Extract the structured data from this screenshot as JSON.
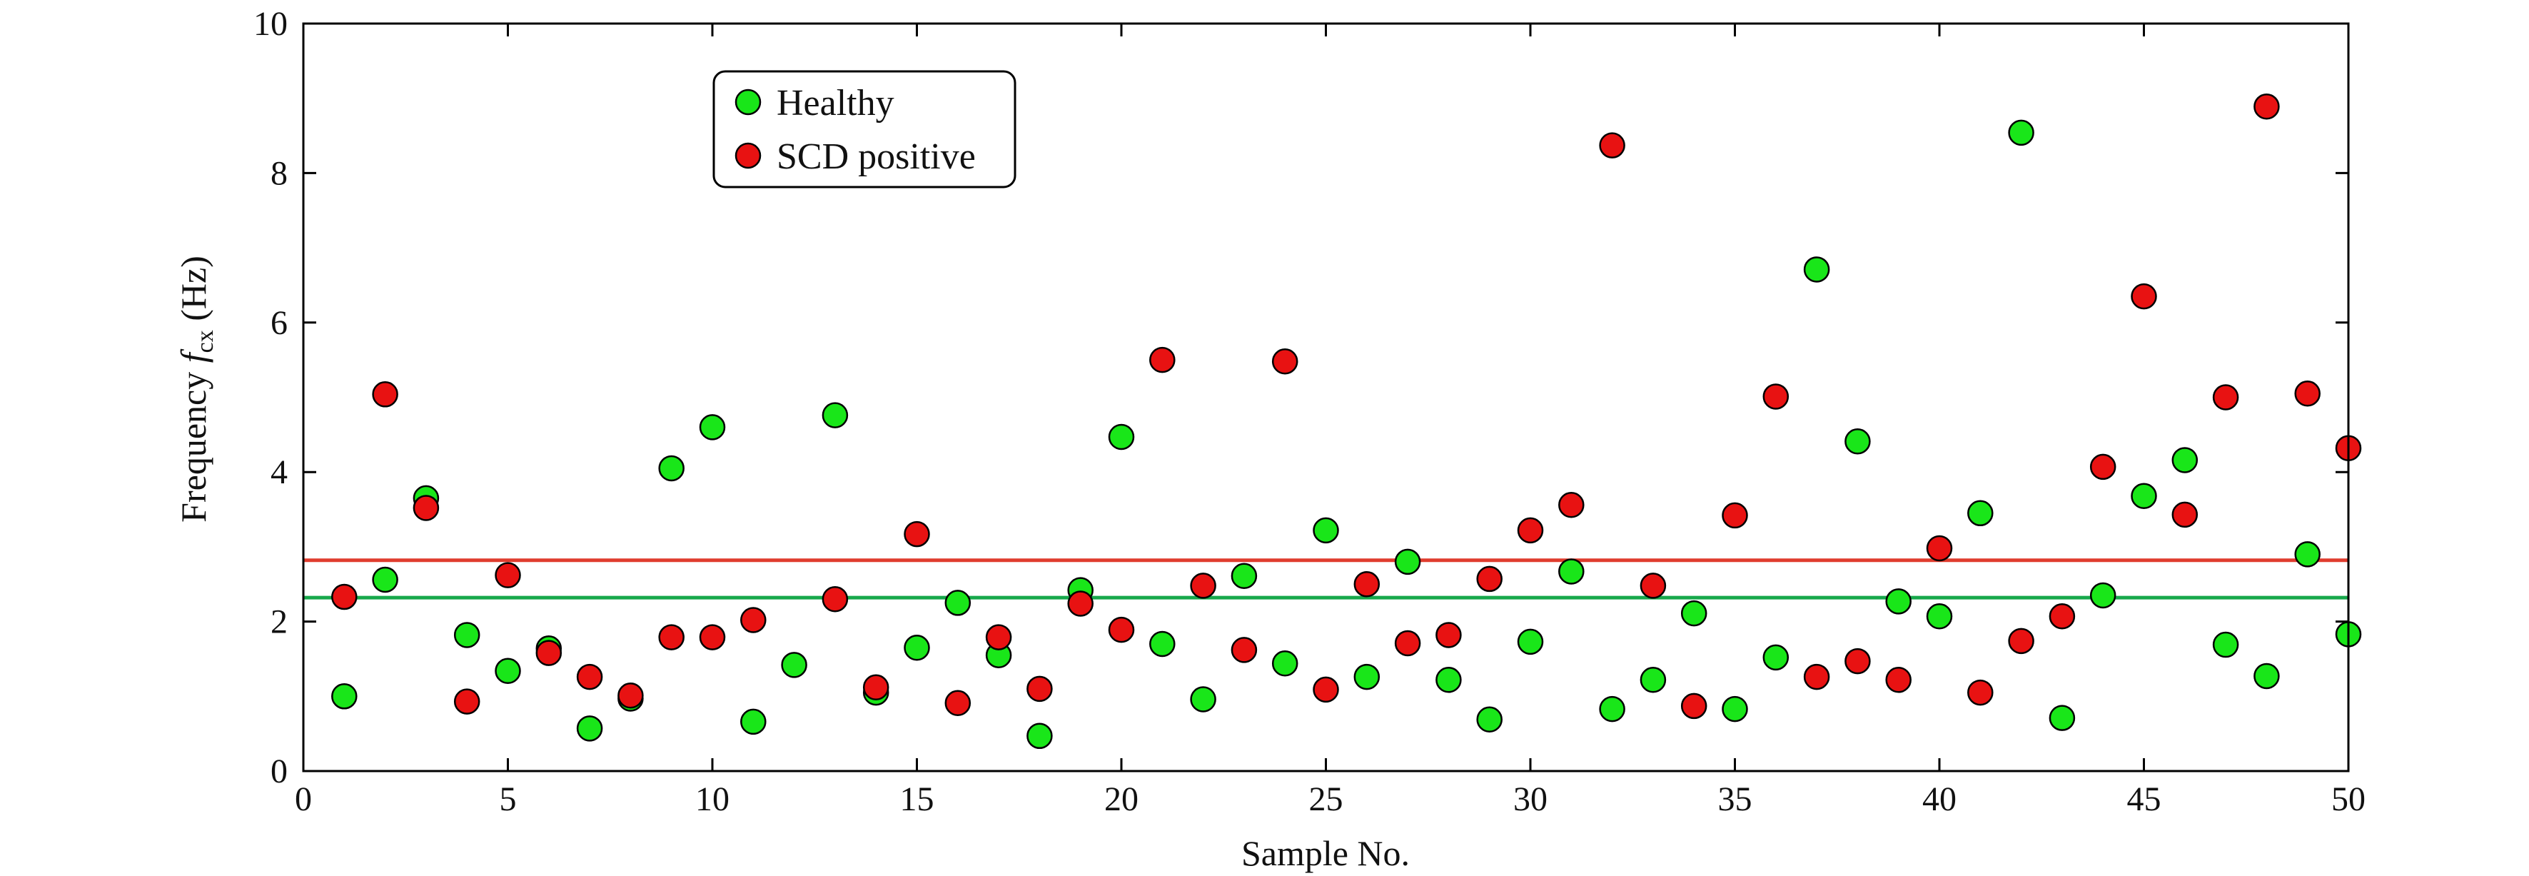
{
  "chart_data": {
    "type": "scatter",
    "title": "",
    "xlabel": "Sample No.",
    "ylabel": {
      "prefix": "Frequency ",
      "symbol": "f",
      "subscript": "cx",
      "unit": " (Hz)"
    },
    "xlim": [
      0,
      50
    ],
    "ylim": [
      0,
      10
    ],
    "xticks": [
      0,
      5,
      10,
      15,
      20,
      25,
      30,
      35,
      40,
      45,
      50
    ],
    "yticks": [
      0,
      2,
      4,
      6,
      8,
      10
    ],
    "grid": false,
    "legend_position": "top-left",
    "series": [
      {
        "name": "Healthy",
        "color": "#19e619",
        "x": [
          1,
          2,
          3,
          4,
          5,
          6,
          7,
          8,
          9,
          10,
          11,
          12,
          13,
          14,
          15,
          16,
          17,
          18,
          19,
          20,
          21,
          22,
          23,
          24,
          25,
          26,
          27,
          28,
          29,
          30,
          31,
          32,
          33,
          34,
          35,
          36,
          37,
          38,
          39,
          40,
          41,
          42,
          43,
          44,
          45,
          46,
          47,
          48,
          49,
          50
        ],
        "y": [
          1.0,
          2.56,
          3.65,
          1.82,
          1.34,
          1.64,
          0.57,
          0.97,
          4.05,
          4.6,
          0.66,
          1.42,
          4.76,
          1.05,
          1.65,
          2.25,
          1.55,
          0.47,
          2.42,
          4.47,
          1.7,
          0.96,
          2.61,
          1.44,
          3.22,
          1.26,
          2.8,
          1.22,
          0.69,
          1.73,
          2.67,
          0.83,
          1.22,
          2.11,
          0.83,
          1.52,
          6.71,
          4.41,
          2.27,
          2.07,
          3.45,
          8.54,
          0.71,
          2.35,
          3.68,
          4.16,
          1.69,
          1.27,
          2.9,
          1.83
        ]
      },
      {
        "name": "SCD positive",
        "color": "#e81212",
        "x": [
          1,
          2,
          3,
          4,
          5,
          6,
          7,
          8,
          9,
          10,
          11,
          12,
          13,
          14,
          15,
          16,
          17,
          18,
          19,
          20,
          21,
          22,
          23,
          24,
          25,
          26,
          27,
          28,
          29,
          30,
          31,
          32,
          33,
          34,
          35,
          36,
          37,
          38,
          39,
          40,
          41,
          42,
          43,
          44,
          45,
          46,
          47,
          48,
          49,
          50
        ],
        "y": [
          2.33,
          5.04,
          3.52,
          0.93,
          2.62,
          1.58,
          1.26,
          1.01,
          1.79,
          1.79,
          2.02,
          null,
          2.3,
          1.12,
          3.17,
          0.91,
          1.79,
          1.1,
          2.24,
          1.89,
          5.5,
          2.48,
          1.62,
          5.48,
          1.09,
          2.5,
          1.71,
          1.82,
          2.57,
          3.22,
          3.56,
          8.37,
          2.48,
          0.87,
          3.42,
          5.01,
          1.26,
          1.47,
          1.22,
          2.98,
          1.05,
          1.74,
          2.07,
          4.07,
          6.35,
          3.43,
          5.0,
          8.89,
          5.05,
          4.32
        ]
      }
    ],
    "reference_lines": [
      {
        "series": "SCD positive",
        "y": 2.82,
        "color": "#e03c2e"
      },
      {
        "series": "Healthy",
        "y": 2.32,
        "color": "#17a84b"
      }
    ]
  }
}
